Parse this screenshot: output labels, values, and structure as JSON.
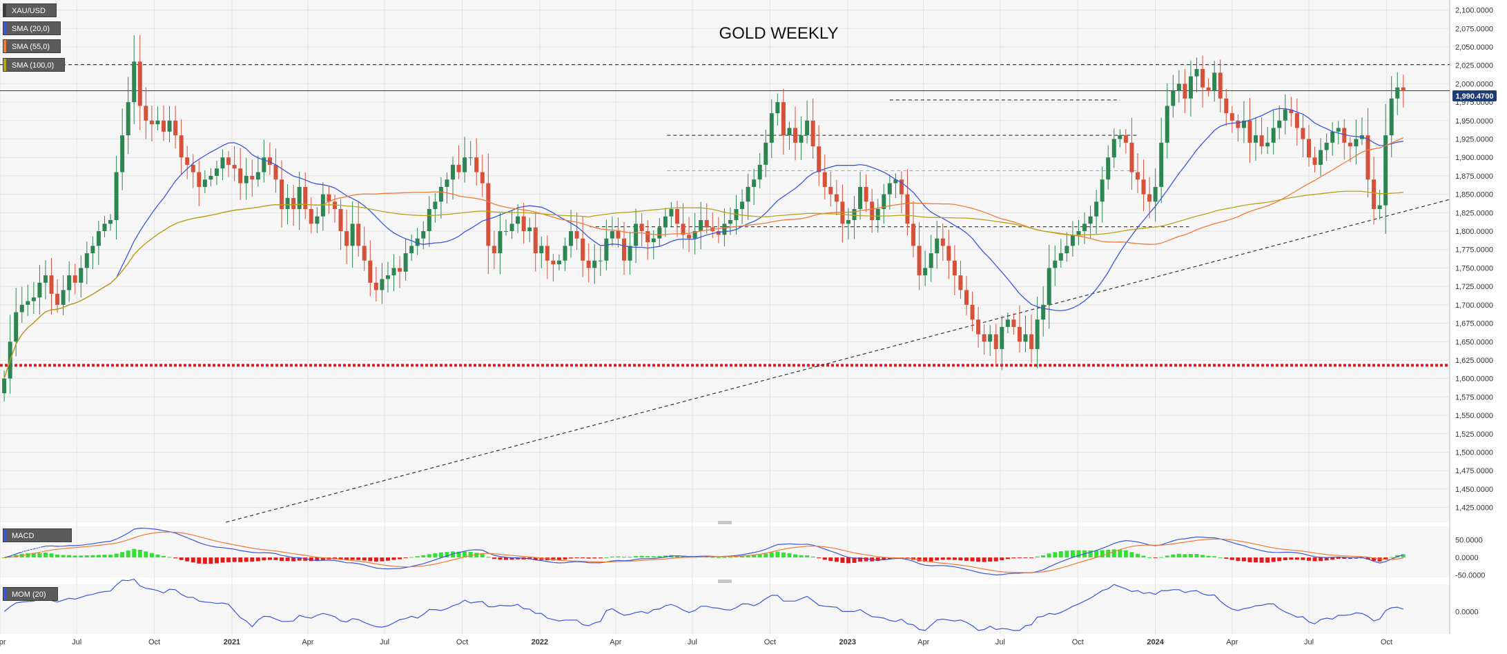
{
  "chart_data": [
    {
      "type": "candlestick",
      "title": "GOLD WEEKLY",
      "symbol": "XAU/USD",
      "last_price": "1,990.4700",
      "ylim": [
        1405,
        2108
      ],
      "yticks": [
        "2,100.0000",
        "2,075.0000",
        "2,050.0000",
        "2,025.0000",
        "2,000.0000",
        "1,975.0000",
        "1,950.0000",
        "1,925.0000",
        "1,900.0000",
        "1,875.0000",
        "1,850.0000",
        "1,825.0000",
        "1,800.0000",
        "1,775.0000",
        "1,750.0000",
        "1,725.0000",
        "1,700.0000",
        "1,675.0000",
        "1,650.0000",
        "1,625.0000",
        "1,600.0000",
        "1,575.0000",
        "1,550.0000",
        "1,525.0000",
        "1,500.0000",
        "1,475.0000",
        "1,450.0000",
        "1,425.0000"
      ],
      "xticks": [
        {
          "label": "Apr",
          "date": "2020-04-01"
        },
        {
          "label": "Jul",
          "date": "2020-07-01"
        },
        {
          "label": "Oct",
          "date": "2020-10-01"
        },
        {
          "label": "2021",
          "date": "2021-01-01"
        },
        {
          "label": "Apr",
          "date": "2021-04-01"
        },
        {
          "label": "Jul",
          "date": "2021-07-01"
        },
        {
          "label": "Oct",
          "date": "2021-10-01"
        },
        {
          "label": "2022",
          "date": "2022-01-01"
        },
        {
          "label": "Apr",
          "date": "2022-04-01"
        },
        {
          "label": "Jul",
          "date": "2022-07-01"
        },
        {
          "label": "Oct",
          "date": "2022-10-01"
        },
        {
          "label": "2023",
          "date": "2023-01-01"
        },
        {
          "label": "Apr",
          "date": "2023-04-01"
        },
        {
          "label": "Jul",
          "date": "2023-07-01"
        },
        {
          "label": "Oct",
          "date": "2023-10-01"
        },
        {
          "label": "2024",
          "date": "2024-01-01"
        },
        {
          "label": "Apr",
          "date": "2024-04-01"
        },
        {
          "label": "Jul",
          "date": "2024-07-01"
        },
        {
          "label": "Oct",
          "date": "2024-10-01"
        }
      ],
      "xlim": [
        "2020-04-01",
        "2024-12-15"
      ],
      "closes": [
        1600,
        1650,
        1690,
        1700,
        1705,
        1710,
        1730,
        1740,
        1715,
        1700,
        1720,
        1740,
        1730,
        1750,
        1770,
        1780,
        1800,
        1810,
        1815,
        1880,
        1930,
        1975,
        2030,
        1970,
        1950,
        1945,
        1950,
        1935,
        1950,
        1930,
        1900,
        1890,
        1880,
        1860,
        1870,
        1875,
        1885,
        1900,
        1890,
        1885,
        1865,
        1875,
        1870,
        1880,
        1900,
        1890,
        1870,
        1830,
        1845,
        1830,
        1860,
        1830,
        1810,
        1820,
        1850,
        1840,
        1830,
        1800,
        1780,
        1810,
        1780,
        1760,
        1730,
        1720,
        1735,
        1740,
        1750,
        1745,
        1770,
        1780,
        1790,
        1800,
        1830,
        1840,
        1860,
        1870,
        1890,
        1880,
        1900,
        1900,
        1880,
        1865,
        1780,
        1770,
        1800,
        1800,
        1810,
        1820,
        1800,
        1805,
        1770,
        1780,
        1760,
        1755,
        1760,
        1780,
        1800,
        1790,
        1760,
        1750,
        1760,
        1760,
        1790,
        1800,
        1790,
        1760,
        1780,
        1810,
        1800,
        1785,
        1790,
        1805,
        1820,
        1830,
        1810,
        1795,
        1790,
        1800,
        1815,
        1805,
        1800,
        1795,
        1810,
        1815,
        1830,
        1840,
        1860,
        1870,
        1890,
        1920,
        1960,
        1975,
        1930,
        1940,
        1920,
        1930,
        1950,
        1915,
        1880,
        1860,
        1850,
        1840,
        1810,
        1815,
        1830,
        1860,
        1840,
        1815,
        1830,
        1850,
        1865,
        1870,
        1850,
        1810,
        1780,
        1740,
        1750,
        1770,
        1790,
        1780,
        1760,
        1740,
        1720,
        1700,
        1680,
        1660,
        1650,
        1660,
        1640,
        1670,
        1680,
        1670,
        1650,
        1660,
        1640,
        1680,
        1700,
        1750,
        1760,
        1770,
        1780,
        1795,
        1800,
        1810,
        1820,
        1840,
        1870,
        1900,
        1925,
        1930,
        1920,
        1880,
        1870,
        1850,
        1840,
        1860,
        1920,
        1970,
        1990,
        2000,
        1980,
        2010,
        2020,
        1995,
        1990,
        2015,
        1980,
        1960,
        1950,
        1940,
        1950,
        1920,
        1930,
        1915,
        1920,
        1940,
        1950,
        1965,
        1960,
        1940,
        1925,
        1900,
        1890,
        1910,
        1920,
        1935,
        1940,
        1920,
        1915,
        1925,
        1930,
        1870,
        1830,
        1835,
        1930,
        1980,
        1995,
        1990
      ],
      "series": [
        {
          "name": "SMA (20,0)",
          "color": "#3a57d6"
        },
        {
          "name": "SMA (55,0)",
          "color": "#f07a36"
        },
        {
          "name": "SMA (100,0)",
          "color": "#b5a41a"
        }
      ],
      "horizontal_levels": [
        {
          "value": 2026,
          "style": "dashed",
          "color": "#444444",
          "x_from": "2020-04-01",
          "x_to": "2024-12-15"
        },
        {
          "value": 1978,
          "style": "dashed",
          "color": "#444444",
          "x_from": "2023-02-20",
          "x_to": "2023-11-20"
        },
        {
          "value": 1930,
          "style": "dashed",
          "color": "#444444",
          "x_from": "2022-06-01",
          "x_to": "2023-12-10"
        },
        {
          "value": 1882,
          "style": "dashed",
          "color": "#aaaaaa",
          "x_from": "2022-06-01",
          "x_to": "2023-12-10"
        },
        {
          "value": 1806,
          "style": "dashed",
          "color": "#444444",
          "x_from": "2022-03-01",
          "x_to": "2024-02-10"
        },
        {
          "value": 1618,
          "style": "dotted",
          "color": "#d61e1e",
          "x_from": "2020-04-01",
          "x_to": "2024-12-15"
        },
        {
          "value": 1990.47,
          "style": "solid",
          "color": "#1f3b73",
          "x_from": "2020-04-01",
          "x_to": "2024-12-15"
        }
      ],
      "trendline": {
        "from": {
          "date": "2020-12-25",
          "value": 1405
        },
        "to": {
          "date": "2024-12-15",
          "value": 1843
        }
      }
    },
    {
      "type": "line",
      "name": "MACD (12,26,9)",
      "yticks": [
        "50.0000",
        "0.0000",
        "-50.0000"
      ],
      "ylim": [
        -55,
        75
      ]
    },
    {
      "type": "line",
      "name": "MOM (20)",
      "yticks": [
        "0.0000"
      ],
      "ylim": [
        -230,
        250
      ]
    }
  ]
}
